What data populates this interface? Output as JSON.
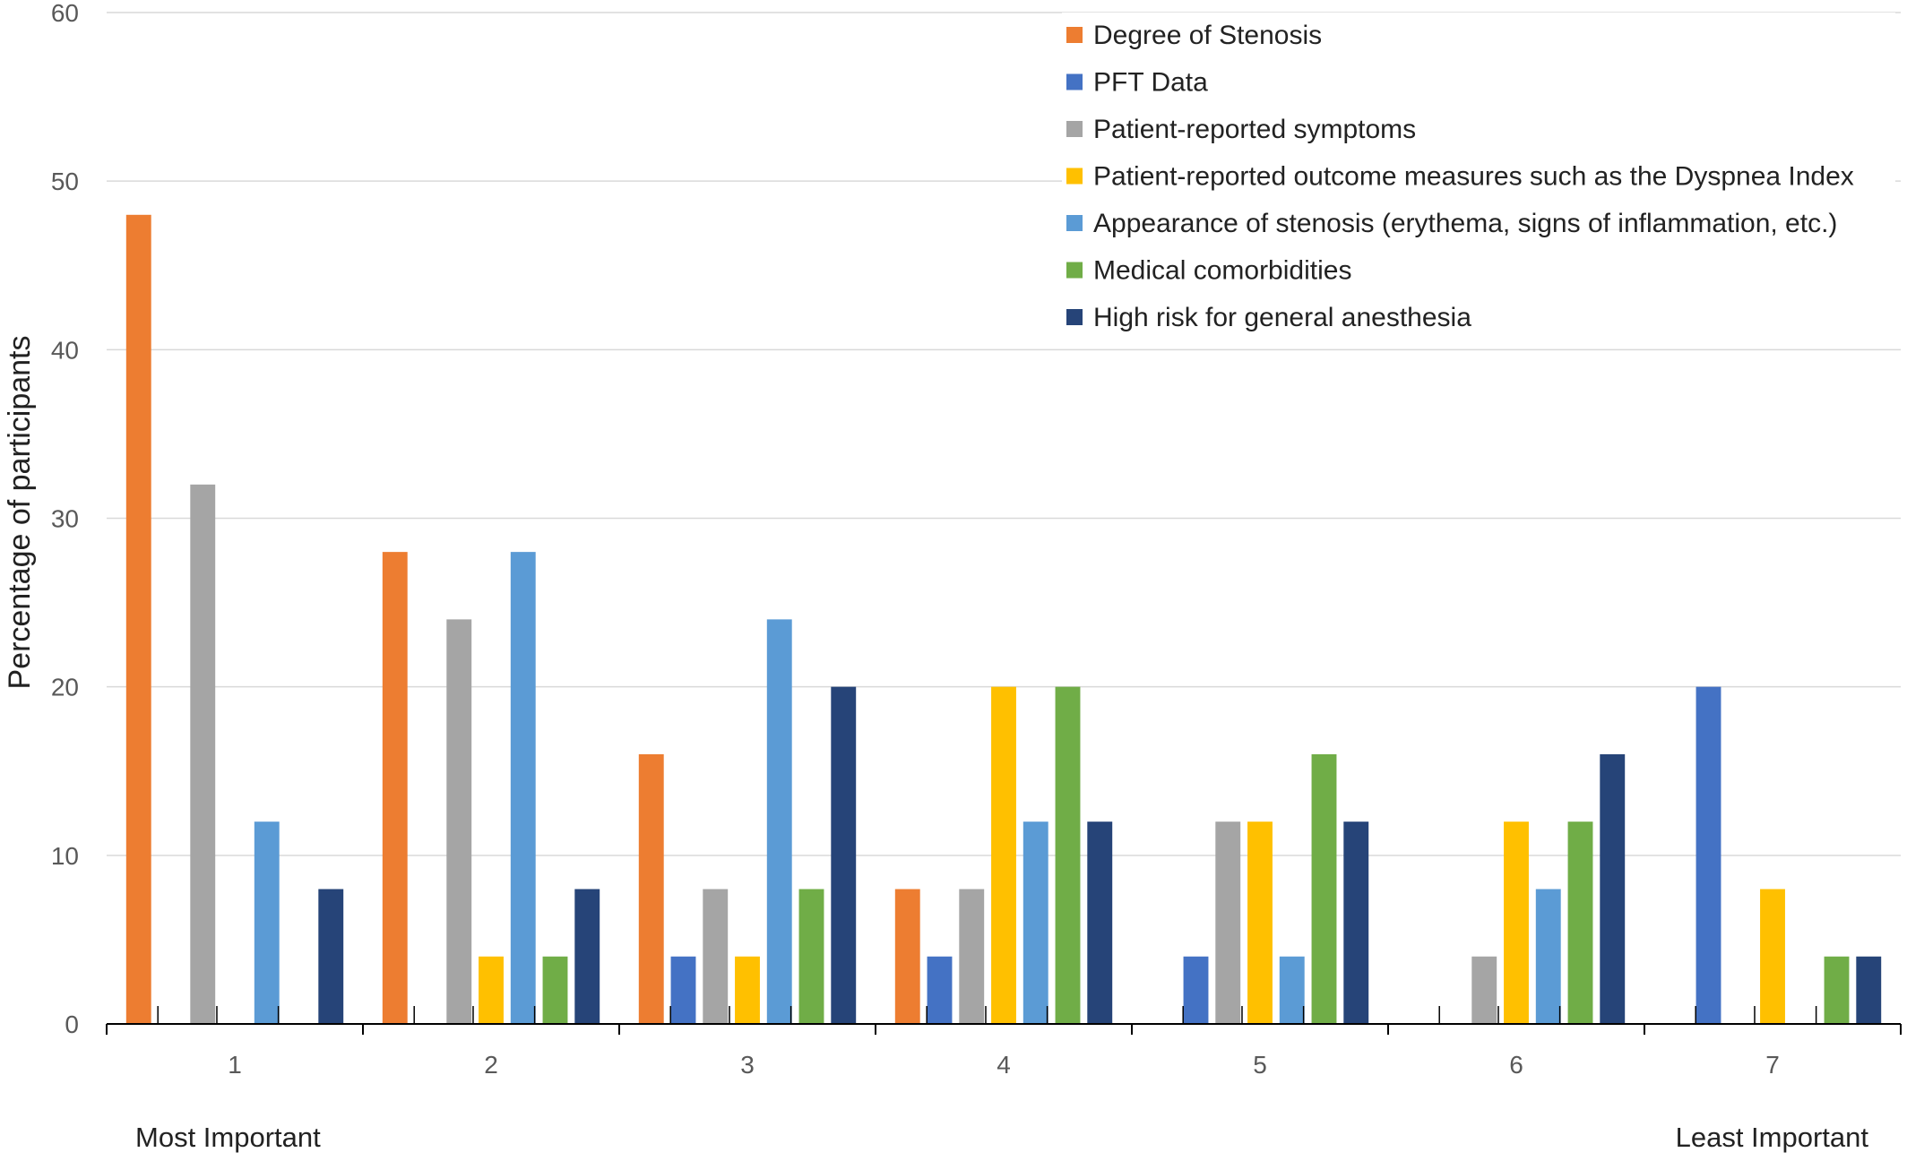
{
  "chart_data": {
    "type": "bar",
    "title": "",
    "xlabel": "",
    "ylabel": "Percentage of participants",
    "ylim": [
      0,
      60
    ],
    "yticks": [
      0,
      10,
      20,
      30,
      40,
      50,
      60
    ],
    "grid": true,
    "legend_position": "top-right",
    "categories": [
      "1",
      "2",
      "3",
      "4",
      "5",
      "6",
      "7"
    ],
    "end_labels": {
      "left": "Most Important",
      "right": "Least Important"
    },
    "series": [
      {
        "name": "Degree of Stenosis",
        "color": "#ED7D31",
        "values": [
          48,
          28,
          16,
          8,
          0,
          0,
          0
        ]
      },
      {
        "name": "PFT Data",
        "color": "#4472C4",
        "values": [
          0,
          0,
          4,
          4,
          4,
          0,
          20
        ]
      },
      {
        "name": "Patient-reported symptoms",
        "color": "#A5A5A5",
        "values": [
          32,
          24,
          8,
          8,
          12,
          4,
          0
        ]
      },
      {
        "name": "Patient-reported outcome measures such as the Dyspnea Index",
        "color": "#FFC000",
        "values": [
          0,
          4,
          4,
          20,
          12,
          12,
          8
        ]
      },
      {
        "name": "Appearance of stenosis (erythema, signs of inflammation, etc.)",
        "color": "#5B9BD5",
        "values": [
          12,
          28,
          24,
          12,
          4,
          8,
          0
        ]
      },
      {
        "name": "Medical comorbidities",
        "color": "#70AD47",
        "values": [
          0,
          4,
          8,
          20,
          16,
          12,
          4
        ]
      },
      {
        "name": "High risk for general anesthesia",
        "color": "#264478",
        "values": [
          8,
          8,
          20,
          12,
          12,
          16,
          4
        ]
      }
    ]
  }
}
